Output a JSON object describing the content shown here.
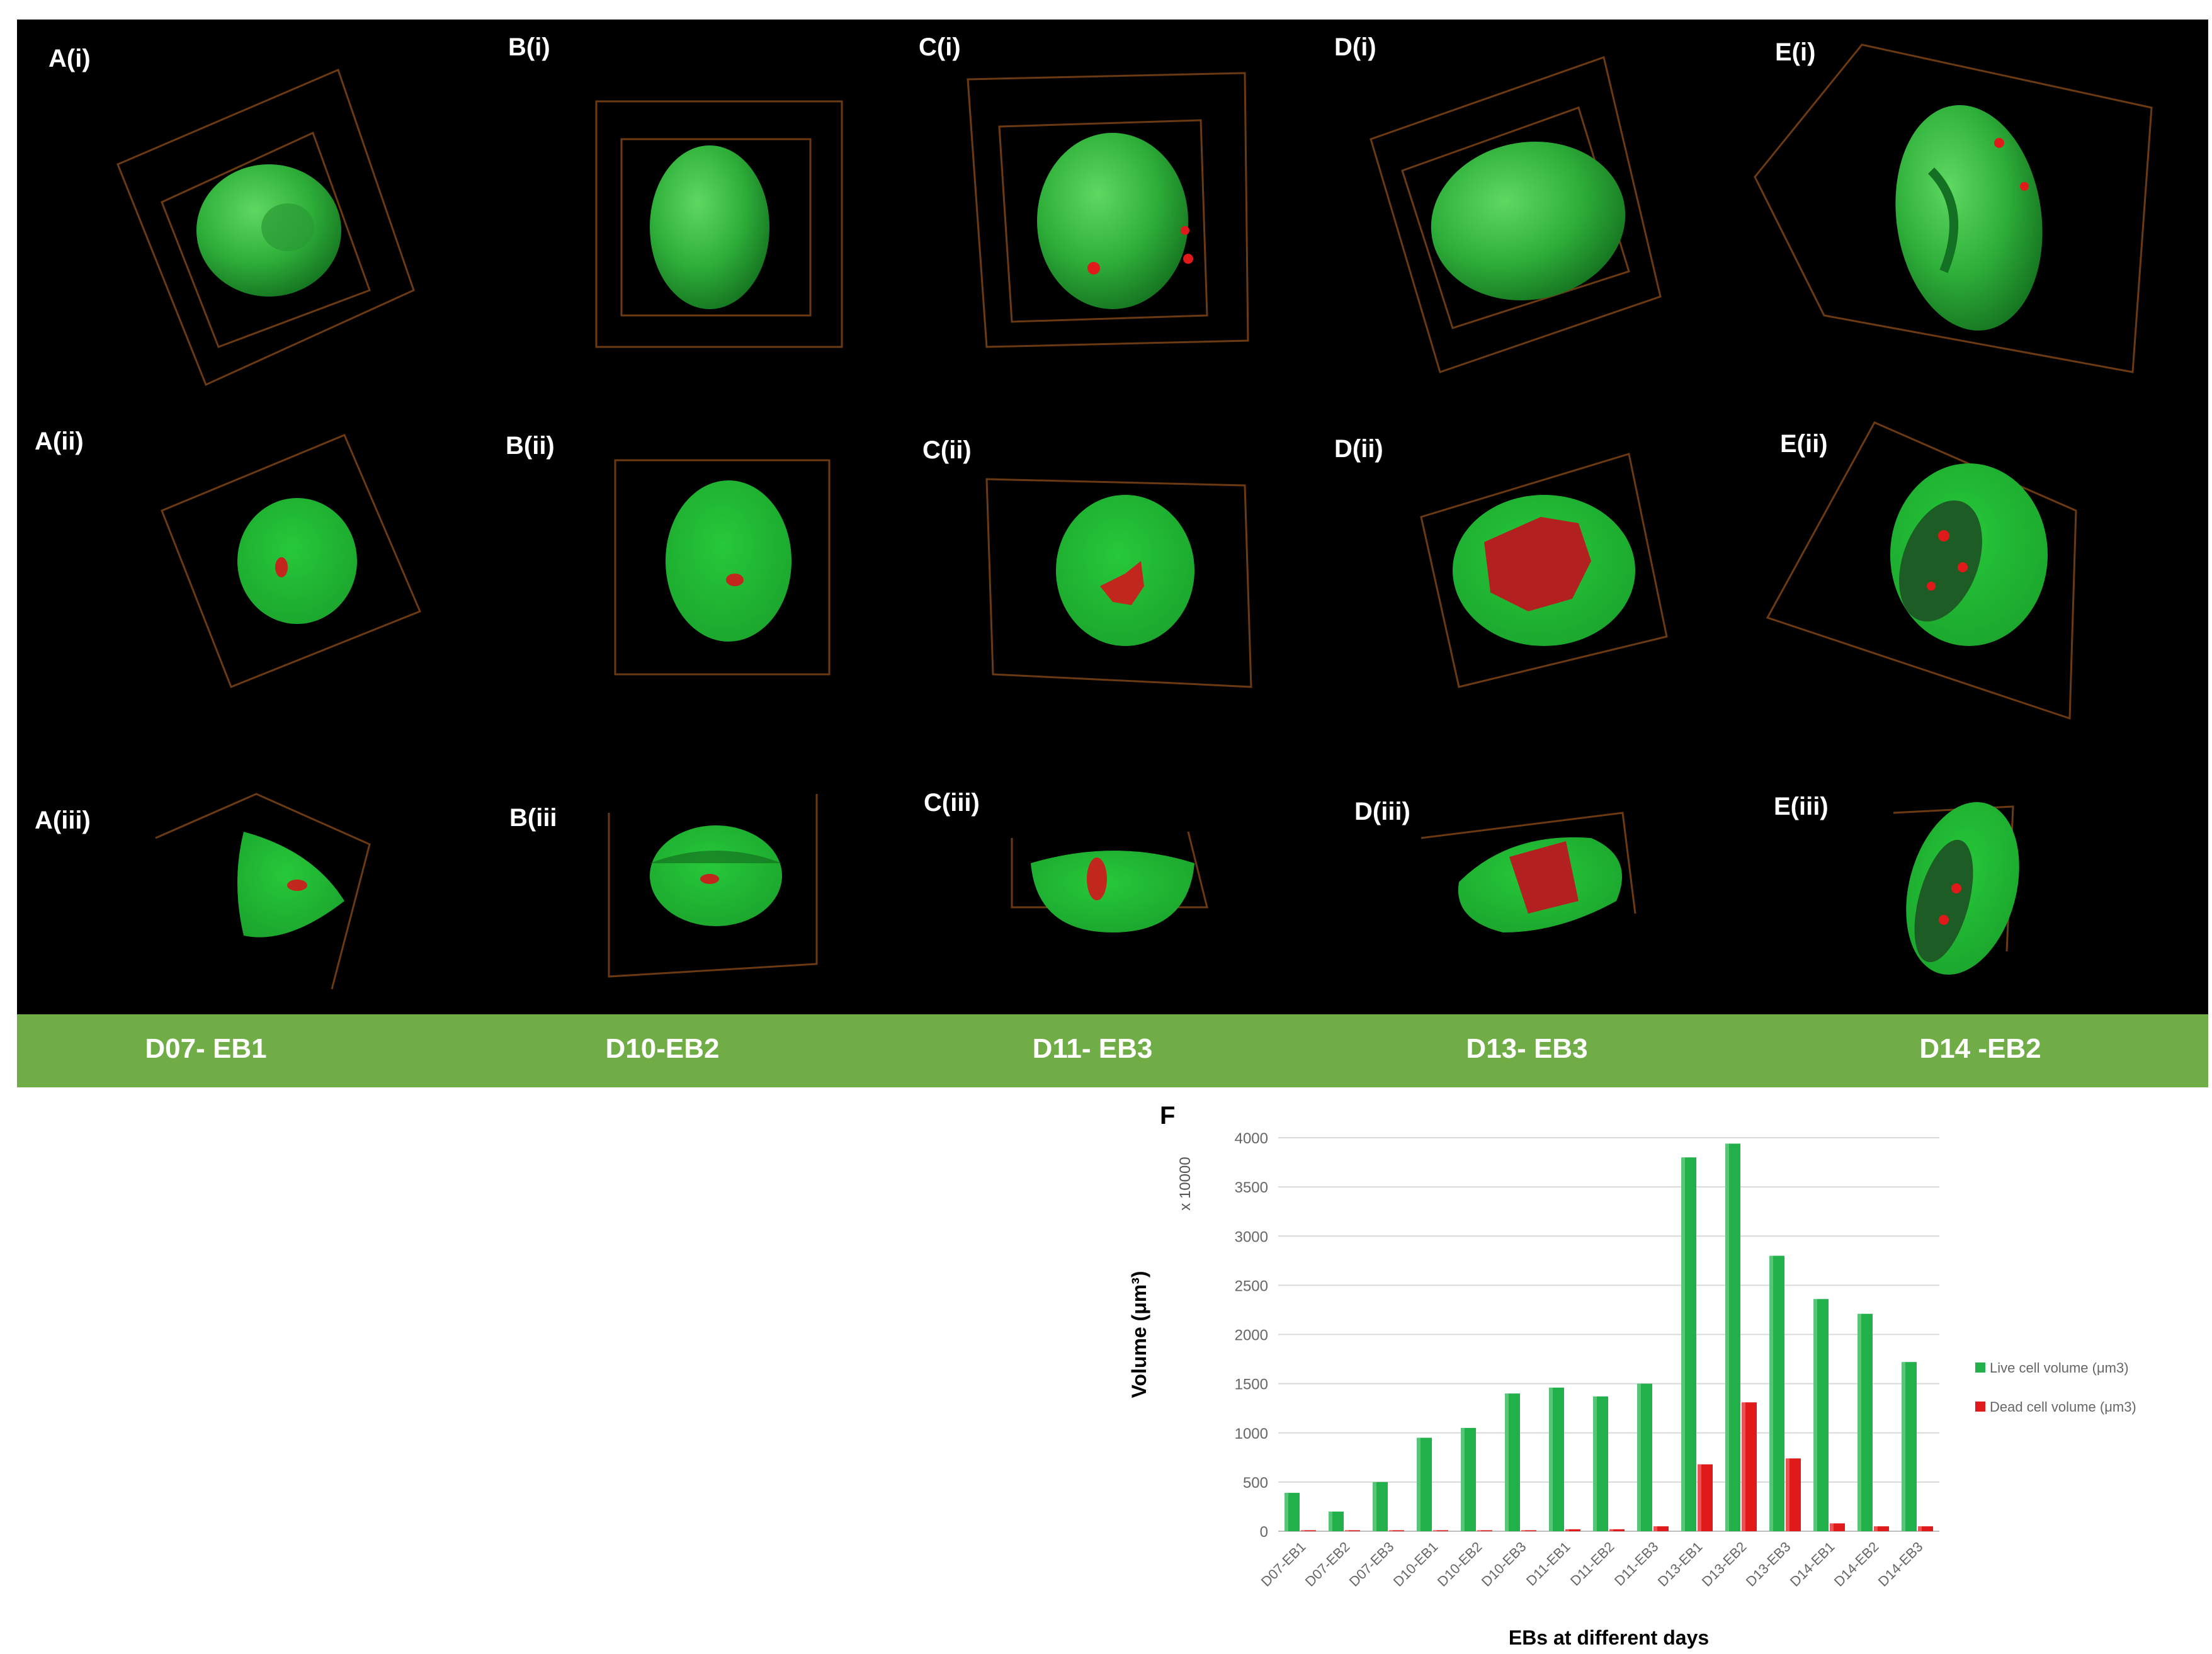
{
  "panels": {
    "row1": [
      "A(i)",
      "B(i)",
      "C(i)",
      "D(i)",
      "E(i)"
    ],
    "row2": [
      "A(ii)",
      "B(ii)",
      "C(ii)",
      "D(ii)",
      "E(ii)"
    ],
    "row3": [
      "A(iii)",
      "B(iii",
      "C(iii)",
      "D(iii)",
      "E(iii)"
    ]
  },
  "samples": [
    "D07- EB1",
    "D10-EB2",
    "D11- EB3",
    "D13- EB3",
    "D14 -EB2"
  ],
  "colors": {
    "live": "#22b04a",
    "dead": "#e01a1a",
    "bar_band": "#70ad47",
    "box_edges": "#6b3a12"
  },
  "figure_letter": "F",
  "chart_data": {
    "type": "bar",
    "categories": [
      "D07-EB1",
      "D07-EB2",
      "D07-EB3",
      "D10-EB1",
      "D10-EB2",
      "D10-EB3",
      "D11-EB1",
      "D11-EB2",
      "D11-EB3",
      "D13-EB1",
      "D13-EB2",
      "D13-EB3",
      "D14-EB1",
      "D14-EB2",
      "D14-EB3"
    ],
    "series": [
      {
        "name": "Live cell volume (μm3)",
        "values": [
          390,
          200,
          500,
          950,
          1050,
          1400,
          1460,
          1370,
          1500,
          3800,
          3940,
          2800,
          2360,
          2210,
          1720
        ]
      },
      {
        "name": "Dead cell volume (μm3)",
        "values": [
          10,
          10,
          10,
          10,
          10,
          10,
          20,
          20,
          50,
          680,
          1310,
          740,
          80,
          50,
          50
        ]
      }
    ],
    "xlabel": "EBs at different days",
    "ylabel": "Volume (μm³)",
    "yscale_note": "x 10000",
    "yticks": [
      0,
      500,
      1000,
      1500,
      2000,
      2500,
      3000,
      3500,
      4000
    ],
    "ylim": [
      0,
      4000
    ],
    "grid": true,
    "legend_position": "right"
  }
}
